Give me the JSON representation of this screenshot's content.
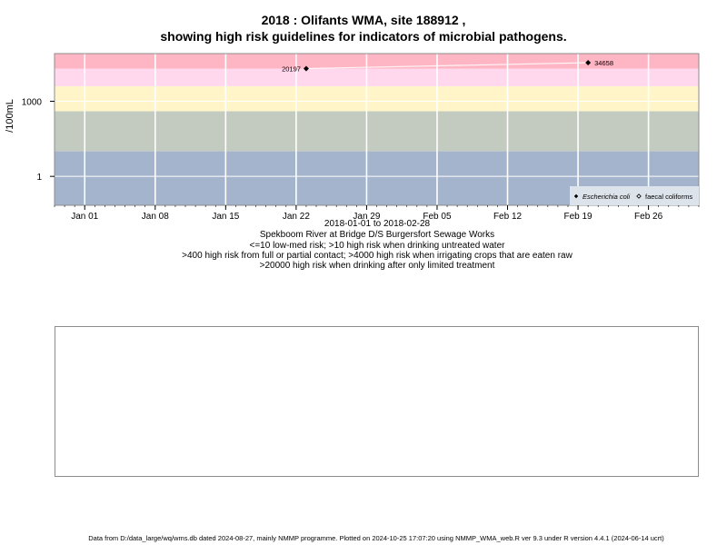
{
  "chart_data": {
    "type": "scatter",
    "title_line1": "2018 : Olifants WMA, site 188912 ,",
    "title_line2": "showing high risk guidelines for indicators of microbial pathogens.",
    "ylabel": "/100mL",
    "y_scale": "log",
    "y_ticks": [
      {
        "value": 1,
        "label": "1"
      },
      {
        "value": 1000,
        "label": "1000"
      }
    ],
    "ylim": [
      0.07,
      80000
    ],
    "x_range": [
      "2017-12-29",
      "2018-03-03"
    ],
    "x_ticks": [
      {
        "date": "2018-01-01",
        "label": "Jan 01"
      },
      {
        "date": "2018-01-08",
        "label": "Jan 08"
      },
      {
        "date": "2018-01-15",
        "label": "Jan 15"
      },
      {
        "date": "2018-01-22",
        "label": "Jan 22"
      },
      {
        "date": "2018-01-29",
        "label": "Jan 29"
      },
      {
        "date": "2018-02-05",
        "label": "Feb 05"
      },
      {
        "date": "2018-02-12",
        "label": "Feb 12"
      },
      {
        "date": "2018-02-19",
        "label": "Feb 19"
      },
      {
        "date": "2018-02-26",
        "label": "Feb 26"
      }
    ],
    "risk_bands": [
      {
        "from": 0.07,
        "to": 10,
        "color": "#a3b4cc"
      },
      {
        "from": 10,
        "to": 400,
        "color": "#c3cbc0"
      },
      {
        "from": 400,
        "to": 4000,
        "color": "#fff5c8"
      },
      {
        "from": 4000,
        "to": 20000,
        "color": "#ffd8ee"
      },
      {
        "from": 20000,
        "to": 80000,
        "color": "#ffb6c4"
      }
    ],
    "series": [
      {
        "name": "Escherichia coli",
        "marker": "filled-diamond",
        "points": [
          {
            "date": "2018-01-23",
            "value": 20197,
            "label": "20197"
          },
          {
            "date": "2018-02-20",
            "value": 34658,
            "label": "34658"
          }
        ]
      },
      {
        "name": "faecal coliforms",
        "marker": "open-diamond",
        "points": []
      }
    ],
    "x_caption": "2018-01-01 to 2018-02-28",
    "notes": [
      "Spekboom River at Bridge D/S Burgersfort Sewage Works",
      "<=10 low-med risk; >10 high risk when drinking untreated water",
      ">400 high risk from full or partial contact; >4000 high risk when irrigating crops that are eaten raw",
      ">20000 high risk when drinking after only limited treatment"
    ],
    "legend_position": "bottom-right",
    "grid": true
  },
  "footer": "Data from D:/data_large/wq/wms.db dated 2024-08-27, mainly NMMP programme. Plotted on 2024-10-25 17:07:20 using NMMP_WMA_web.R ver 9.3 under R version 4.4.1 (2024-06-14 ucrt)"
}
